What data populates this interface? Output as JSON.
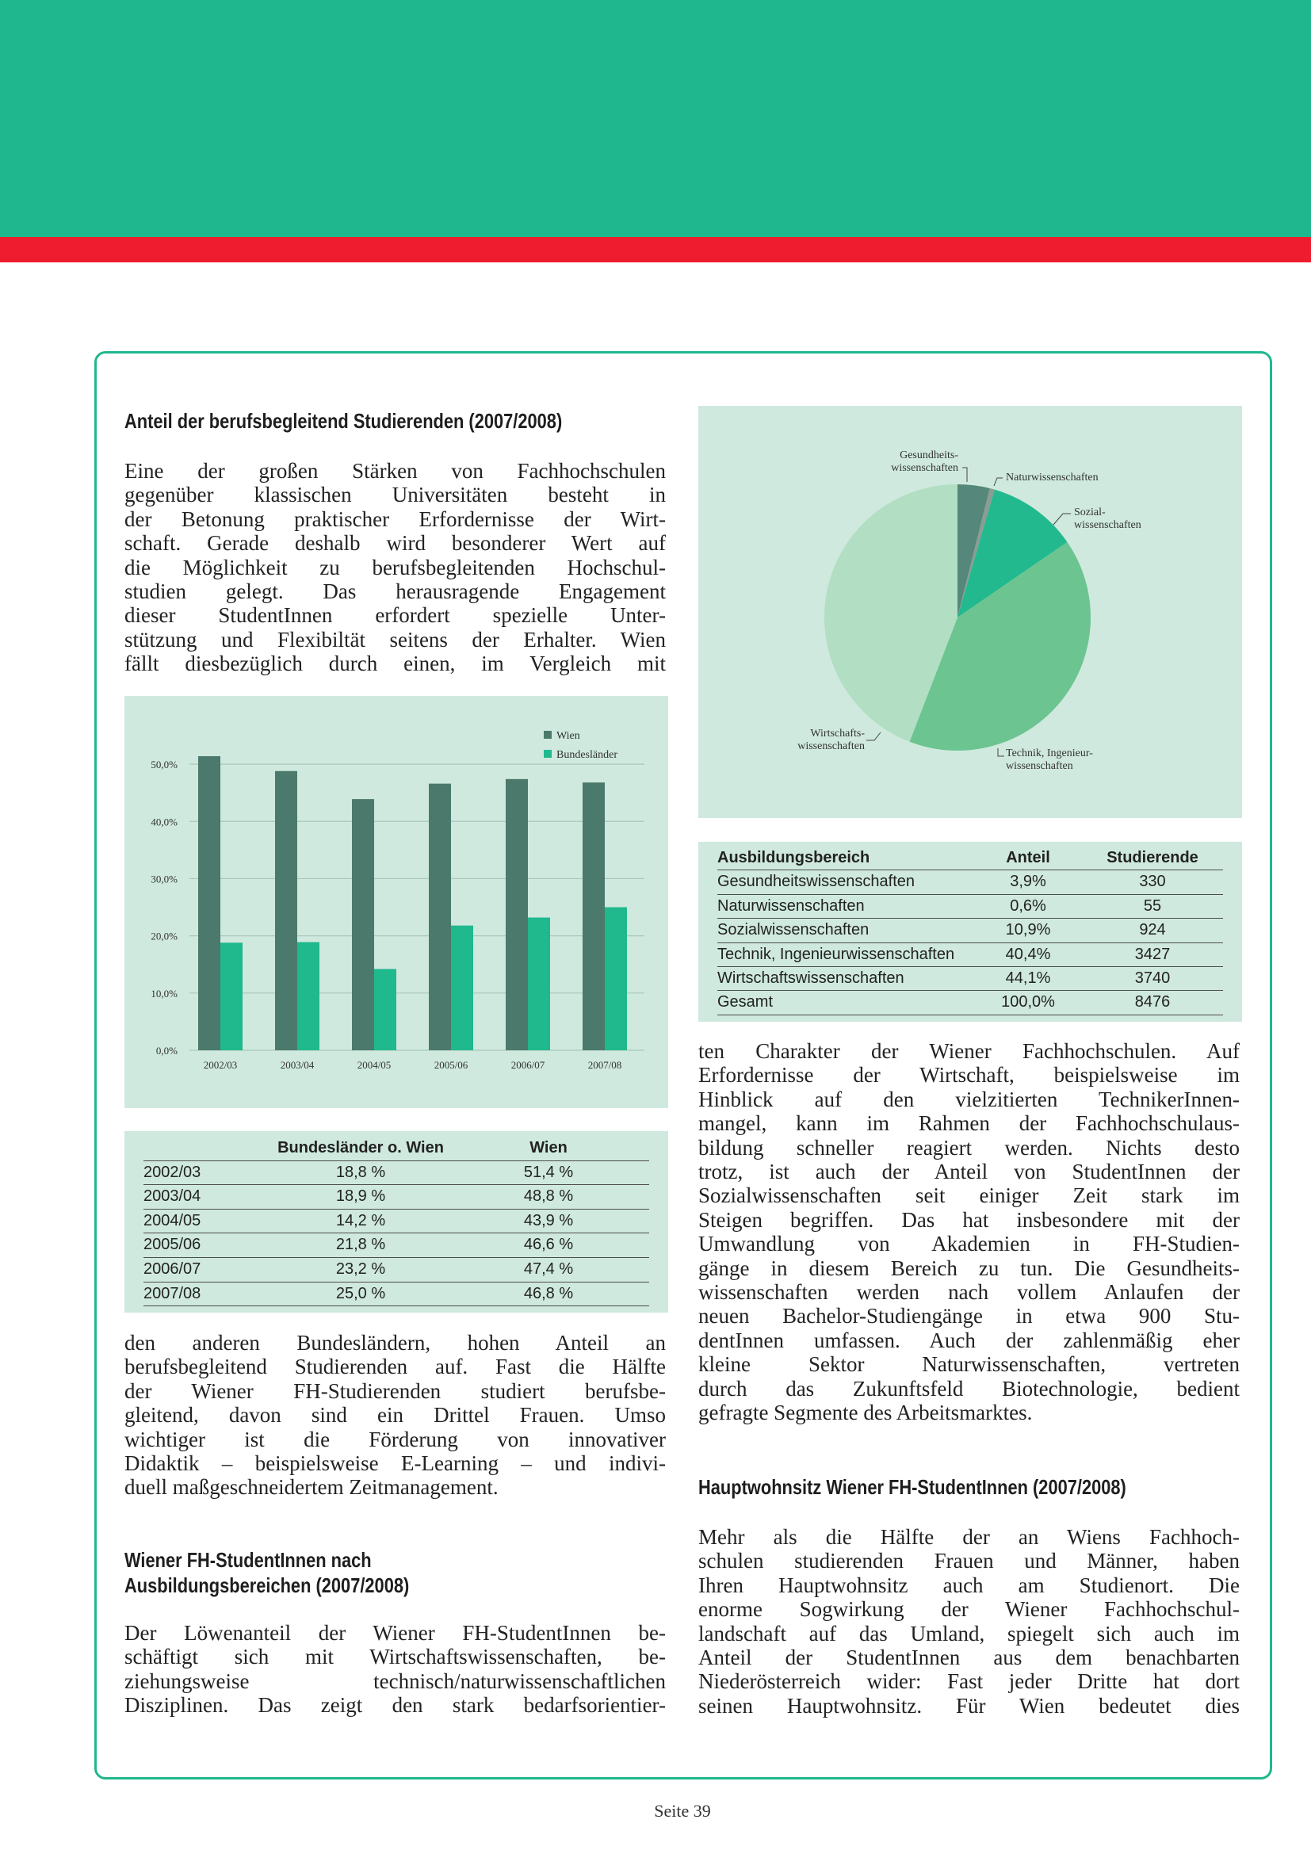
{
  "heading_1": "Anteil der berufsbegleitend Studierenden (2007/2008)",
  "text_1": [
    "Eine der großen Stärken von Fachhochschulen",
    "gegenüber klassischen Universitäten besteht in",
    "der Betonung praktischer Erfordernisse der Wirt-",
    "schaft. Gerade deshalb wird besonderer Wert auf",
    "die Möglichkeit zu berufsbegleitenden Hochschul-",
    "studien gelegt. Das herausragende Engagement",
    "dieser StudentInnen erfordert spezielle Unter-",
    "stützung und Flexibiltät seitens der Erhalter. Wien",
    "fällt diesbezüglich durch einen, im Vergleich mit"
  ],
  "chart_data": [
    {
      "type": "bar",
      "categories": [
        "2002/03",
        "2003/04",
        "2004/05",
        "2005/06",
        "2006/07",
        "2007/08"
      ],
      "series": [
        {
          "name": "Wien",
          "color": "#4b7a6c",
          "values": [
            51.4,
            48.8,
            43.9,
            46.6,
            47.4,
            46.8
          ]
        },
        {
          "name": "Bundesländer",
          "color": "#20b88d",
          "values": [
            18.8,
            18.9,
            14.2,
            21.8,
            23.2,
            25.0
          ]
        }
      ],
      "ylim": [
        0,
        55
      ],
      "yticks": [
        {
          "value": 0,
          "label": "0,0%"
        },
        {
          "value": 10,
          "label": "10,0%"
        },
        {
          "value": 20,
          "label": "20,0%"
        },
        {
          "value": 30,
          "label": "30,0%"
        },
        {
          "value": 40,
          "label": "40,0%"
        },
        {
          "value": 50,
          "label": "50,0%"
        }
      ],
      "grid": true,
      "legend": "top-right"
    },
    {
      "type": "pie",
      "categories": [
        "Gesundheits-\nwissenschaften",
        "Naturwissenschaften",
        "Sozial-\nwissenschaften",
        "Technik, Ingenieur-\nwissenschaften",
        "Wirtschafts-\nwissenschaften"
      ],
      "values": [
        3.9,
        0.6,
        10.9,
        40.4,
        44.1
      ],
      "colors": [
        "#55887a",
        "#8c9c95",
        "#22b98e",
        "#6cc490",
        "#b2dec3"
      ]
    }
  ],
  "table_1": {
    "header": [
      "Bundesländer o. Wien",
      "Wien"
    ],
    "rows": [
      [
        "2002/03",
        "18,8 %",
        "51,4 %"
      ],
      [
        "2003/04",
        "18,9 %",
        "48,8 %"
      ],
      [
        "2004/05",
        "14,2 %",
        "43,9 %"
      ],
      [
        "2005/06",
        "21,8 %",
        "46,6 %"
      ],
      [
        "2006/07",
        "23,2 %",
        "47,4 %"
      ],
      [
        "2007/08",
        "25,0 %",
        "46,8 %"
      ]
    ]
  },
  "text_2": [
    "den anderen Bundesländern, hohen Anteil an",
    "berufsbegleitend Studierenden auf. Fast die Hälfte",
    "der Wiener FH-Studierenden studiert berufsbe-",
    "gleitend, davon sind ein Drittel Frauen. Umso",
    "wichtiger ist die Förderung von innovativer",
    "Didaktik – beispielsweise E-Learning – und indivi-",
    "duell maßgeschneidertem Zeitmanagement."
  ],
  "heading_2": [
    "Wiener FH-StudentInnen nach",
    "Ausbildungsbereichen (2007/2008)"
  ],
  "text_3": [
    "Der Löwenanteil der Wiener FH-StudentInnen be-",
    "schäftigt sich mit Wirtschaftswissenschaften, be-",
    "ziehungsweise technisch/naturwissenschaftlichen",
    "Disziplinen. Das zeigt den stark bedarfsorientier-"
  ],
  "table_2": {
    "header": [
      "Ausbildungsbereich",
      "Anteil",
      "Studierende"
    ],
    "rows": [
      [
        "Gesundheitswissenschaften",
        "3,9%",
        "330"
      ],
      [
        "Naturwissenschaften",
        "0,6%",
        "55"
      ],
      [
        "Sozialwissenschaften",
        "10,9%",
        "924"
      ],
      [
        "Technik, Ingenieurwissenschaften",
        "40,4%",
        "3427"
      ],
      [
        "Wirtschaftswissenschaften",
        "44,1%",
        "3740"
      ],
      [
        "Gesamt",
        "100,0%",
        "8476"
      ]
    ]
  },
  "text_4": [
    "ten Charakter der Wiener Fachhochschulen. Auf",
    "Erfordernisse der Wirtschaft, beispielsweise im",
    "Hinblick auf den vielzitierten TechnikerInnen-",
    "mangel, kann im Rahmen der Fachhochschulaus-",
    "bildung schneller reagiert werden. Nichts desto",
    "trotz, ist auch der Anteil von StudentInnen der",
    "Sozialwissenschaften seit einiger Zeit stark im",
    "Steigen begriffen. Das hat insbesondere mit der",
    "Umwandlung von Akademien in FH-Studien-",
    "gänge in diesem Bereich zu tun. Die Gesundheits-",
    "wissenschaften werden nach vollem Anlaufen der",
    "neuen Bachelor-Studiengänge in etwa 900 Stu-",
    "dentInnen umfassen. Auch der zahlenmäßig eher",
    "kleine Sektor Naturwissenschaften, vertreten",
    "durch das Zukunftsfeld Biotechnologie, bedient",
    "gefragte Segmente des Arbeitsmarktes."
  ],
  "heading_3": "Hauptwohnsitz Wiener FH-StudentInnen (2007/2008)",
  "text_5": [
    "Mehr als die Hälfte der an Wiens Fachhoch-",
    "schulen studierenden Frauen und Männer, haben",
    "Ihren Hauptwohnsitz auch am Studienort. Die",
    "enorme Sogwirkung der Wiener Fachhochschul-",
    "landschaft auf das Umland, spiegelt sich auch im",
    "Anteil der StudentInnen aus dem benachbarten",
    "Niederösterreich wider: Fast jeder Dritte hat dort",
    "seinen Hauptwohnsitz. Für Wien bedeutet dies"
  ],
  "footer": "Seite 39"
}
